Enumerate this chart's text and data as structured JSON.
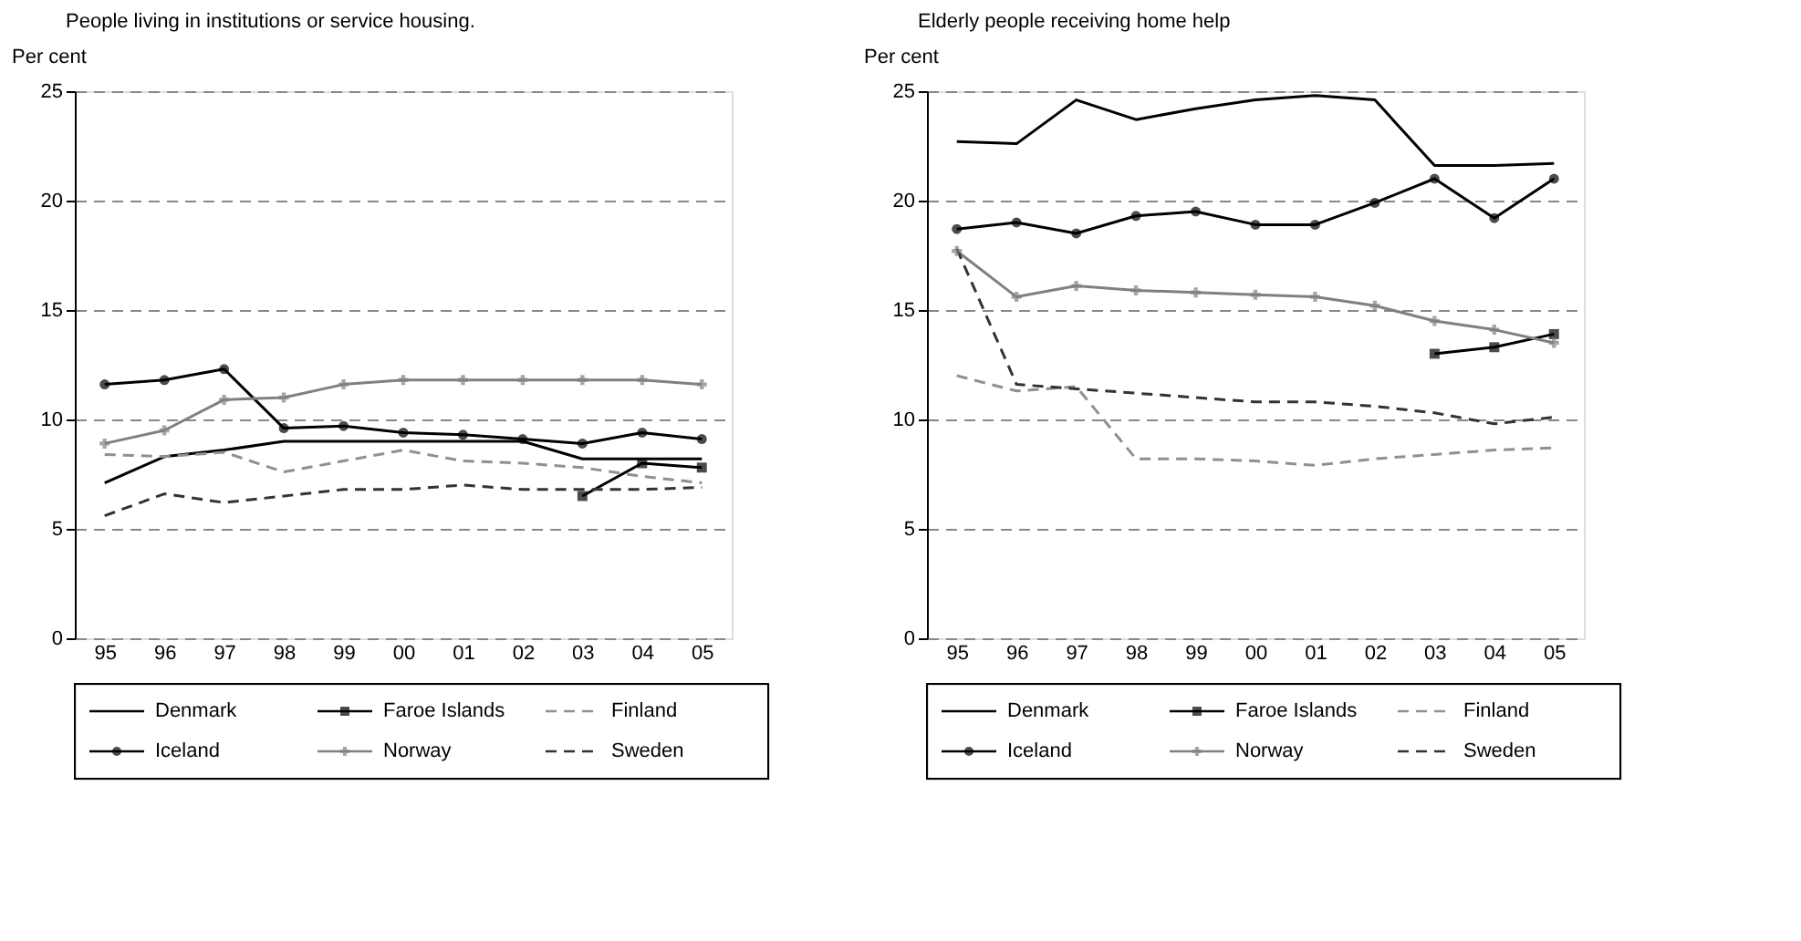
{
  "chart_data": [
    {
      "type": "line",
      "title": "People living in institutions or service housing.",
      "ylabel": "Per cent",
      "categories": [
        "95",
        "96",
        "97",
        "98",
        "99",
        "00",
        "01",
        "02",
        "03",
        "04",
        "05"
      ],
      "ylim": [
        0,
        25
      ],
      "yticks": [
        0,
        5,
        10,
        15,
        20,
        25
      ],
      "grid": "y",
      "legend": "bottom",
      "series": [
        {
          "name": "Denmark",
          "color": "#000000",
          "marker": "none",
          "line_style": "solid",
          "values": [
            7.1,
            8.3,
            8.6,
            9.0,
            9.0,
            9.0,
            9.0,
            9.0,
            8.2,
            8.2,
            8.2
          ]
        },
        {
          "name": "Faroe Islands",
          "color": "#000000",
          "marker": "square",
          "line_style": "solid",
          "values": [
            null,
            null,
            null,
            null,
            null,
            null,
            null,
            null,
            6.5,
            8.0,
            7.8
          ]
        },
        {
          "name": "Finland",
          "color": "#909090",
          "marker": "none",
          "line_style": "dashed",
          "values": [
            8.4,
            8.3,
            8.5,
            7.6,
            8.1,
            8.6,
            8.1,
            8.0,
            7.8,
            7.4,
            7.1
          ]
        },
        {
          "name": "Iceland",
          "color": "#000000",
          "marker": "circle",
          "line_style": "solid",
          "values": [
            11.6,
            11.8,
            12.3,
            9.6,
            9.7,
            9.4,
            9.3,
            9.1,
            8.9,
            9.4,
            9.1
          ]
        },
        {
          "name": "Norway",
          "color": "#808080",
          "marker": "cross",
          "line_style": "solid",
          "values": [
            8.9,
            9.5,
            10.9,
            11.0,
            11.6,
            11.8,
            11.8,
            11.8,
            11.8,
            11.8,
            11.6
          ]
        },
        {
          "name": "Sweden",
          "color": "#333333",
          "marker": "none",
          "line_style": "dashed",
          "values": [
            5.6,
            6.6,
            6.2,
            6.5,
            6.8,
            6.8,
            7.0,
            6.8,
            6.8,
            6.8,
            6.9
          ]
        }
      ]
    },
    {
      "type": "line",
      "title": "Elderly people receiving home help",
      "ylabel": "Per cent",
      "categories": [
        "95",
        "96",
        "97",
        "98",
        "99",
        "00",
        "01",
        "02",
        "03",
        "04",
        "05"
      ],
      "ylim": [
        0,
        25
      ],
      "yticks": [
        0,
        5,
        10,
        15,
        20,
        25
      ],
      "grid": "y",
      "legend": "bottom",
      "series": [
        {
          "name": "Denmark",
          "color": "#000000",
          "marker": "none",
          "line_style": "solid",
          "values": [
            22.7,
            22.6,
            24.6,
            23.7,
            24.2,
            24.6,
            24.8,
            24.6,
            21.6,
            21.6,
            21.7
          ]
        },
        {
          "name": "Faroe Islands",
          "color": "#000000",
          "marker": "square",
          "line_style": "solid",
          "values": [
            null,
            null,
            null,
            null,
            null,
            null,
            null,
            null,
            13.0,
            13.3,
            13.9
          ]
        },
        {
          "name": "Finland",
          "color": "#909090",
          "marker": "none",
          "line_style": "dashed",
          "values": [
            12.0,
            11.3,
            11.5,
            8.2,
            8.2,
            8.1,
            7.9,
            8.2,
            8.4,
            8.6,
            8.7
          ]
        },
        {
          "name": "Iceland",
          "color": "#000000",
          "marker": "circle",
          "line_style": "solid",
          "values": [
            18.7,
            19.0,
            18.5,
            19.3,
            19.5,
            18.9,
            18.9,
            19.9,
            21.0,
            19.2,
            21.0
          ]
        },
        {
          "name": "Norway",
          "color": "#808080",
          "marker": "cross",
          "line_style": "solid",
          "values": [
            17.7,
            15.6,
            16.1,
            15.9,
            15.8,
            15.7,
            15.6,
            15.2,
            14.5,
            14.1,
            13.5
          ]
        },
        {
          "name": "Sweden",
          "color": "#333333",
          "marker": "none",
          "line_style": "dashed",
          "values": [
            17.8,
            11.6,
            11.4,
            11.2,
            11.0,
            10.8,
            10.8,
            10.6,
            10.3,
            9.8,
            10.1
          ]
        }
      ]
    }
  ]
}
